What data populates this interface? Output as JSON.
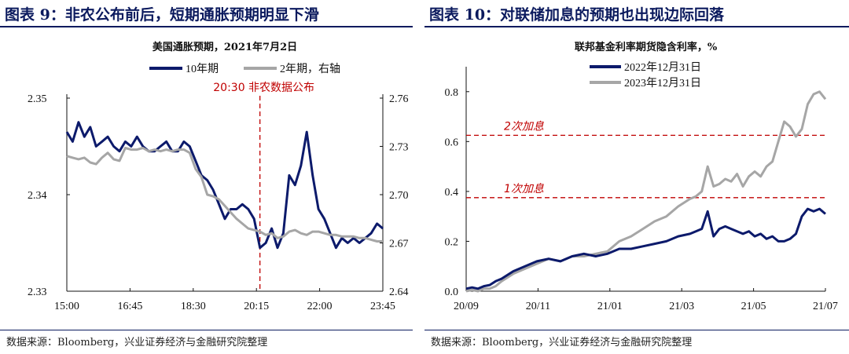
{
  "left": {
    "figure_title": "图表 9：非农公布前后，短期通胀预期明显下滑",
    "source": "数据来源：Bloomberg，兴业证券经济与金融研究院整理"
  },
  "right": {
    "figure_title": "图表 10：对联储加息的预期也出现边际回落",
    "source": "数据来源：Bloomberg，兴业证券经济与金融研究院整理"
  },
  "colors": {
    "navy": "#0c1a6b",
    "gray": "#a6a6a6",
    "red": "#c00000",
    "heading": "#0b1a5e"
  },
  "chart_data": [
    {
      "type": "line",
      "title": "美国通胀预期，2021年7月2日",
      "x_ticks": [
        "15:00",
        "16:45",
        "18:30",
        "20:15",
        "22:00",
        "23:45"
      ],
      "y_left_ticks": [
        "2.33",
        "2.34",
        "2.35"
      ],
      "y_left_range": [
        2.33,
        2.35
      ],
      "y_right_ticks": [
        "2.64",
        "2.67",
        "2.70",
        "2.73",
        "2.76"
      ],
      "y_right_range": [
        2.64,
        2.76
      ],
      "x_range_minutes": [
        900,
        1440
      ],
      "annotation": {
        "label": "20:30 非农数据公布",
        "x_minutes": 1230
      },
      "legend_position": "top-center",
      "series": [
        {
          "name": "10年期",
          "axis": "left",
          "color": "#0c1a6b",
          "x_minutes": [
            900,
            910,
            920,
            930,
            940,
            950,
            960,
            970,
            980,
            990,
            1000,
            1010,
            1020,
            1030,
            1040,
            1050,
            1060,
            1070,
            1080,
            1090,
            1100,
            1110,
            1120,
            1130,
            1140,
            1150,
            1160,
            1170,
            1180,
            1190,
            1200,
            1210,
            1220,
            1230,
            1240,
            1250,
            1260,
            1270,
            1280,
            1290,
            1300,
            1310,
            1320,
            1330,
            1340,
            1350,
            1360,
            1370,
            1380,
            1390,
            1400,
            1410,
            1420,
            1430,
            1440
          ],
          "values": [
            2.3465,
            2.3455,
            2.3475,
            2.346,
            2.347,
            2.345,
            2.3455,
            2.346,
            2.345,
            2.3445,
            2.3455,
            2.345,
            2.346,
            2.345,
            2.3445,
            2.3445,
            2.345,
            2.3455,
            2.3445,
            2.3445,
            2.3455,
            2.345,
            2.3435,
            2.342,
            2.3415,
            2.3405,
            2.339,
            2.3375,
            2.3385,
            2.3385,
            2.339,
            2.3385,
            2.3375,
            2.3345,
            2.335,
            2.3365,
            2.3345,
            2.336,
            2.342,
            2.341,
            2.343,
            2.3465,
            2.342,
            2.3385,
            2.3375,
            2.336,
            2.3345,
            2.3355,
            2.335,
            2.3355,
            2.335,
            2.3355,
            2.336,
            2.337,
            2.3365
          ]
        },
        {
          "name": "2年期，右轴",
          "axis": "right",
          "color": "#a6a6a6",
          "x_minutes": [
            900,
            910,
            920,
            930,
            940,
            950,
            960,
            970,
            980,
            990,
            1000,
            1010,
            1020,
            1030,
            1040,
            1050,
            1060,
            1070,
            1080,
            1090,
            1100,
            1110,
            1120,
            1130,
            1140,
            1150,
            1160,
            1170,
            1180,
            1190,
            1200,
            1210,
            1220,
            1230,
            1240,
            1250,
            1260,
            1270,
            1280,
            1290,
            1300,
            1310,
            1320,
            1330,
            1340,
            1350,
            1360,
            1370,
            1380,
            1390,
            1400,
            1410,
            1420,
            1430,
            1440
          ],
          "values": [
            2.724,
            2.723,
            2.722,
            2.723,
            2.72,
            2.719,
            2.723,
            2.726,
            2.722,
            2.721,
            2.729,
            2.728,
            2.728,
            2.729,
            2.727,
            2.728,
            2.727,
            2.728,
            2.727,
            2.728,
            2.728,
            2.726,
            2.716,
            2.711,
            2.7,
            2.699,
            2.697,
            2.693,
            2.689,
            2.685,
            2.682,
            2.679,
            2.678,
            2.677,
            2.675,
            2.676,
            2.673,
            2.674,
            2.677,
            2.678,
            2.676,
            2.675,
            2.677,
            2.677,
            2.676,
            2.675,
            2.675,
            2.674,
            2.674,
            2.674,
            2.673,
            2.673,
            2.672,
            2.671,
            2.671
          ]
        }
      ]
    },
    {
      "type": "line",
      "title": "联邦基金利率期货隐含利率，%",
      "x_ticks": [
        "20/09",
        "20/11",
        "21/01",
        "21/03",
        "21/05",
        "21/07"
      ],
      "y_ticks": [
        "0.0",
        "0.2",
        "0.4",
        "0.6",
        "0.8"
      ],
      "y_range": [
        0,
        0.9
      ],
      "x_range_days": [
        0,
        305
      ],
      "hlines": [
        {
          "label": "2次加息",
          "value": 0.625
        },
        {
          "label": "1次加息",
          "value": 0.375
        }
      ],
      "legend_position": "top-left",
      "series": [
        {
          "name": "2022年12月31日",
          "color": "#0c1a6b",
          "x_days": [
            0,
            5,
            10,
            15,
            20,
            25,
            30,
            40,
            50,
            60,
            70,
            80,
            90,
            100,
            110,
            120,
            130,
            140,
            150,
            160,
            170,
            180,
            190,
            195,
            200,
            205,
            210,
            215,
            220,
            225,
            230,
            235,
            240,
            245,
            250,
            255,
            260,
            265,
            270,
            275,
            280,
            285,
            290,
            295,
            300,
            305
          ],
          "values": [
            0.01,
            0.015,
            0.01,
            0.02,
            0.025,
            0.04,
            0.05,
            0.08,
            0.1,
            0.12,
            0.13,
            0.12,
            0.14,
            0.15,
            0.14,
            0.15,
            0.17,
            0.17,
            0.18,
            0.19,
            0.2,
            0.22,
            0.23,
            0.24,
            0.25,
            0.32,
            0.22,
            0.25,
            0.26,
            0.25,
            0.24,
            0.23,
            0.24,
            0.22,
            0.23,
            0.21,
            0.22,
            0.2,
            0.2,
            0.21,
            0.23,
            0.3,
            0.33,
            0.32,
            0.33,
            0.31
          ]
        },
        {
          "name": "2023年12月31日",
          "color": "#a6a6a6",
          "x_days": [
            0,
            5,
            10,
            15,
            20,
            25,
            30,
            40,
            50,
            60,
            70,
            80,
            90,
            100,
            110,
            120,
            130,
            140,
            150,
            160,
            170,
            180,
            190,
            195,
            200,
            205,
            210,
            215,
            220,
            225,
            230,
            235,
            240,
            245,
            250,
            255,
            260,
            265,
            270,
            275,
            280,
            285,
            290,
            295,
            300,
            305
          ],
          "values": [
            0.0,
            0.005,
            0.0,
            0.01,
            0.01,
            0.02,
            0.04,
            0.07,
            0.09,
            0.11,
            0.13,
            0.12,
            0.14,
            0.14,
            0.15,
            0.16,
            0.2,
            0.22,
            0.25,
            0.28,
            0.3,
            0.34,
            0.37,
            0.38,
            0.4,
            0.5,
            0.42,
            0.43,
            0.45,
            0.44,
            0.47,
            0.42,
            0.46,
            0.48,
            0.46,
            0.5,
            0.52,
            0.6,
            0.68,
            0.66,
            0.62,
            0.65,
            0.75,
            0.79,
            0.8,
            0.77
          ]
        }
      ]
    }
  ]
}
